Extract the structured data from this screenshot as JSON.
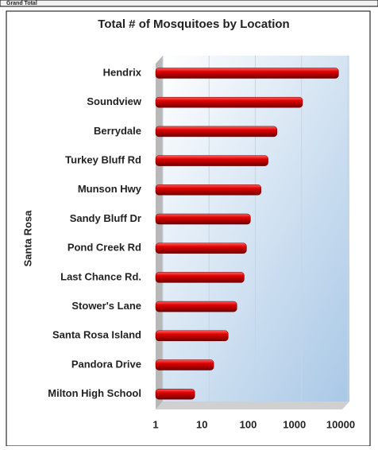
{
  "table_strip": {
    "label": "Grand Total"
  },
  "chart_data": {
    "type": "bar",
    "orientation": "horizontal",
    "title": "Total # of Mosquitoes by Location",
    "y_label": "Santa Rosa",
    "categories": [
      "Hendrix",
      "Soundview",
      "Berrydale",
      "Turkey Bluff Rd",
      "Munson Hwy",
      "Sandy Bluff Dr",
      "Pond Creek Rd",
      "Last Chance Rd.",
      "Stower's Lane",
      "Santa Rosa Island",
      "Pandora Drive",
      "Milton High School"
    ],
    "values": [
      9000,
      1500,
      420,
      270,
      190,
      112,
      92,
      82,
      57,
      37,
      18,
      7
    ],
    "color": "#c00000",
    "xlim": [
      1,
      10000
    ],
    "xticks": [
      1,
      10,
      100,
      1000,
      10000
    ],
    "x_scale": "log",
    "grid": true
  }
}
